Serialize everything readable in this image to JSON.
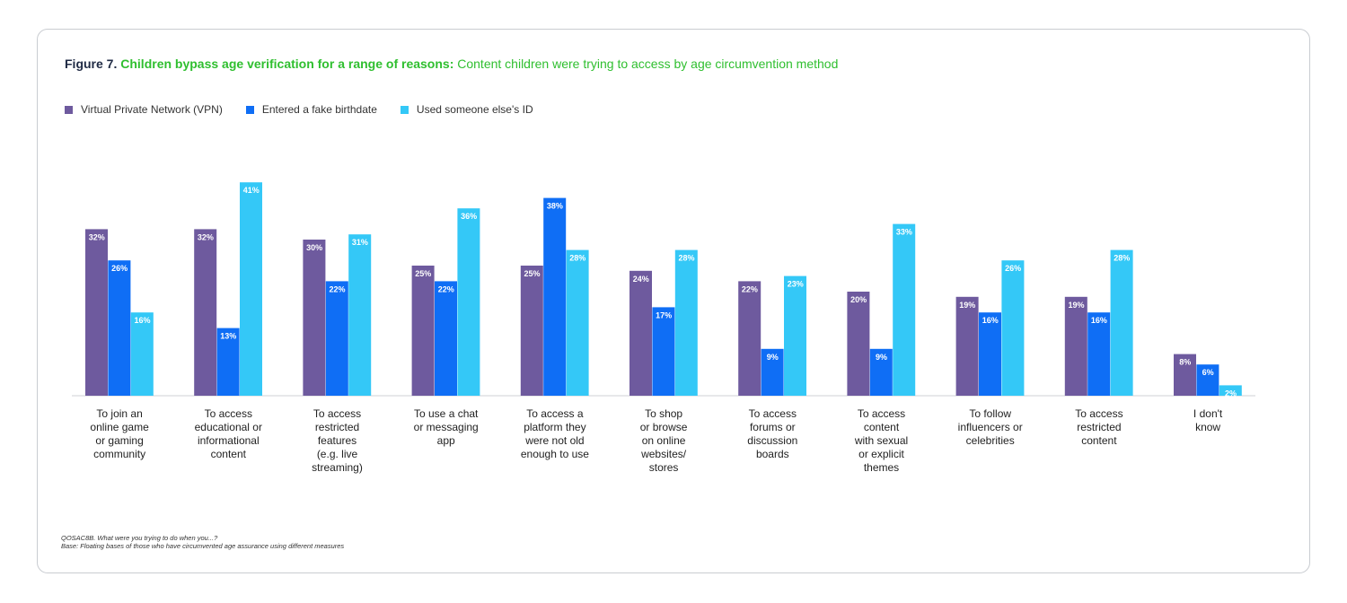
{
  "figure": {
    "label": "Figure 7.",
    "headline": "Children bypass age verification for a range of reasons:",
    "subtitle": "Content children were trying to access by age circumvention method"
  },
  "footnote": {
    "question": "QOSAC8B. What were you trying to do when you...?",
    "base": "Base: Floating bases of those who have circumvented age assurance using different measures"
  },
  "colors": {
    "title_accent": "#2fbf2f",
    "title_dark": "#1f2a44"
  },
  "chart_data": {
    "type": "bar",
    "ylim": [
      0,
      45
    ],
    "legend_position": "top-left",
    "grid": false,
    "categories": [
      [
        "To join an",
        "online game",
        "or gaming",
        "community"
      ],
      [
        "To access",
        "educational or",
        "informational",
        "content"
      ],
      [
        "To access",
        "restricted",
        "features",
        "(e.g. live",
        "streaming)"
      ],
      [
        "To use a chat",
        "or messaging",
        "app"
      ],
      [
        "To access a",
        "platform they",
        "were not old",
        "enough to use"
      ],
      [
        "To shop",
        "or browse",
        "on online",
        "websites/",
        "stores"
      ],
      [
        "To access",
        "forums or",
        "discussion",
        "boards"
      ],
      [
        "To access",
        "content",
        "with sexual",
        "or explicit",
        "themes"
      ],
      [
        "To follow",
        "influencers or",
        "celebrities"
      ],
      [
        "To access",
        "restricted",
        "content"
      ],
      [
        "I don't",
        "know"
      ]
    ],
    "series": [
      {
        "name": "Virtual Private Network (VPN)",
        "color": "#6e5a9e",
        "values": [
          32,
          32,
          30,
          25,
          25,
          24,
          22,
          20,
          19,
          19,
          8
        ]
      },
      {
        "name": "Entered a fake birthdate",
        "color": "#0f6ef5",
        "values": [
          26,
          13,
          22,
          22,
          38,
          17,
          9,
          9,
          16,
          16,
          6
        ]
      },
      {
        "name": "Used someone else's ID",
        "color": "#34c8f7",
        "values": [
          16,
          41,
          31,
          36,
          28,
          28,
          23,
          33,
          26,
          28,
          2
        ]
      }
    ],
    "value_suffix": "%"
  }
}
